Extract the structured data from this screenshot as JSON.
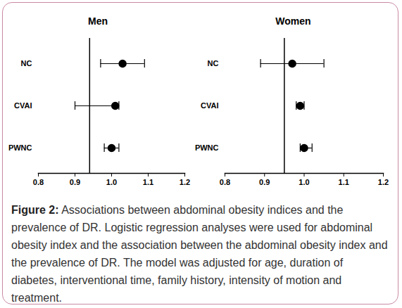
{
  "chart_data": [
    {
      "type": "forest",
      "title": "Men",
      "categories": [
        "NC",
        "CVAI",
        "PWNC"
      ],
      "values": [
        1.03,
        1.01,
        1.0
      ],
      "lower": [
        0.97,
        0.9,
        0.98
      ],
      "upper": [
        1.09,
        1.02,
        1.02
      ],
      "reference": 0.94,
      "color": "#000000",
      "xlim": [
        0.8,
        1.2
      ],
      "xticks": [
        0.8,
        0.9,
        {
          "value": 1,
          "label": "1.0"
        },
        1.1,
        1.2
      ]
    },
    {
      "type": "forest",
      "title": "Women",
      "categories": [
        "NC",
        "CVAI",
        "PWNC"
      ],
      "values": [
        0.97,
        0.99,
        1.0
      ],
      "lower": [
        0.89,
        0.98,
        0.99
      ],
      "upper": [
        1.05,
        1.0,
        1.02
      ],
      "reference": 0.95,
      "color": "#000000",
      "xlim": [
        0.8,
        1.2
      ],
      "xticks": [
        0.8,
        0.9,
        {
          "value": 1,
          "label": "1.0"
        },
        1.1,
        1.2
      ]
    }
  ],
  "caption_label": "Figure 2:",
  "caption": "Associations between abdominal obesity indices and the prevalence of DR. Logistic regression analyses were used for abdominal obesity index and the association between the abdominal obesity index and the prevalence of DR. The model was adjusted for age, duration of diabetes, interventional time, family history, intensity of motion and treatment."
}
